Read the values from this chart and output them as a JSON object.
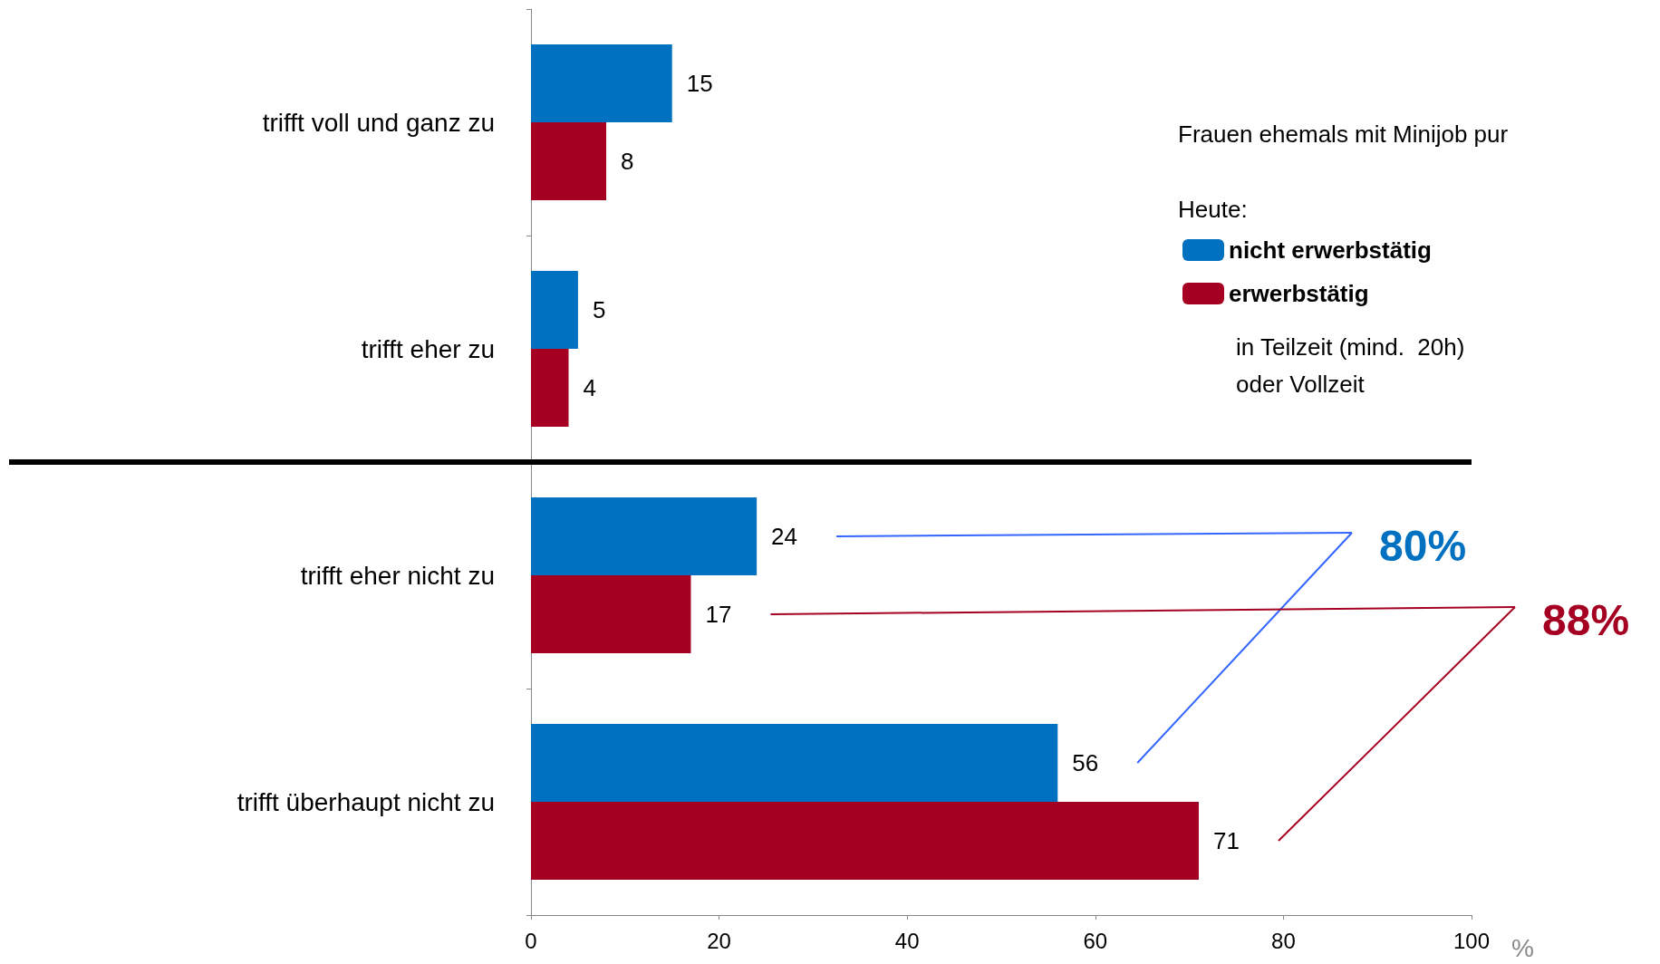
{
  "chart_data": {
    "type": "bar",
    "orientation": "horizontal",
    "categories": [
      "trifft voll und ganz zu",
      "trifft eher zu",
      "trifft eher nicht zu",
      "trifft überhaupt nicht zu"
    ],
    "series": [
      {
        "name": "nicht erwerbstätig",
        "color": "#0070c0",
        "values": [
          15,
          5,
          24,
          56
        ]
      },
      {
        "name": "erwerbstätig",
        "color": "#a50021",
        "values": [
          8,
          4,
          17,
          71
        ]
      }
    ],
    "xlim": [
      0,
      100
    ],
    "xticks": [
      0,
      20,
      40,
      60,
      80,
      100
    ],
    "xlabel": "%",
    "subtitle": "Frauen ehemals mit Minijob pur",
    "legend_title": "Heute:",
    "annotations": [
      "80%",
      "88%",
      "in Teilzeit (mind.  20h)\noder Vollzeit"
    ],
    "data_labels": true,
    "grid": false,
    "legend": "top right"
  }
}
